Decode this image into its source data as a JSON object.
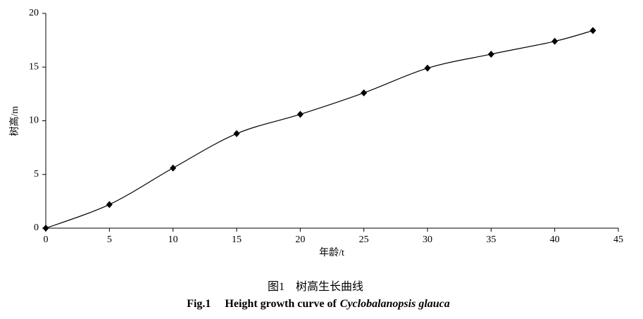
{
  "chart_data": {
    "type": "line",
    "x_label": "年龄/t",
    "y_label": "树高/m",
    "caption_cn_label": "图1",
    "caption_cn_text": "树高生长曲线",
    "caption_en_label": "Fig.1",
    "caption_en_text": "Height growth curve of",
    "caption_en_species": "Cyclobalanopsis glauca",
    "x": [
      0,
      5,
      10,
      15,
      20,
      25,
      30,
      35,
      40,
      43
    ],
    "series": [
      {
        "color": "#000000",
        "values": [
          0,
          2.2,
          5.6,
          8.8,
          10.6,
          12.6,
          14.9,
          16.2,
          17.4,
          18.4
        ]
      }
    ],
    "xlim": [
      0,
      45
    ],
    "xticks": [
      0,
      5,
      10,
      15,
      20,
      25,
      30,
      35,
      40,
      45
    ],
    "ylim": [
      0,
      20
    ],
    "yticks": [
      0,
      5,
      10,
      15,
      20
    ]
  }
}
